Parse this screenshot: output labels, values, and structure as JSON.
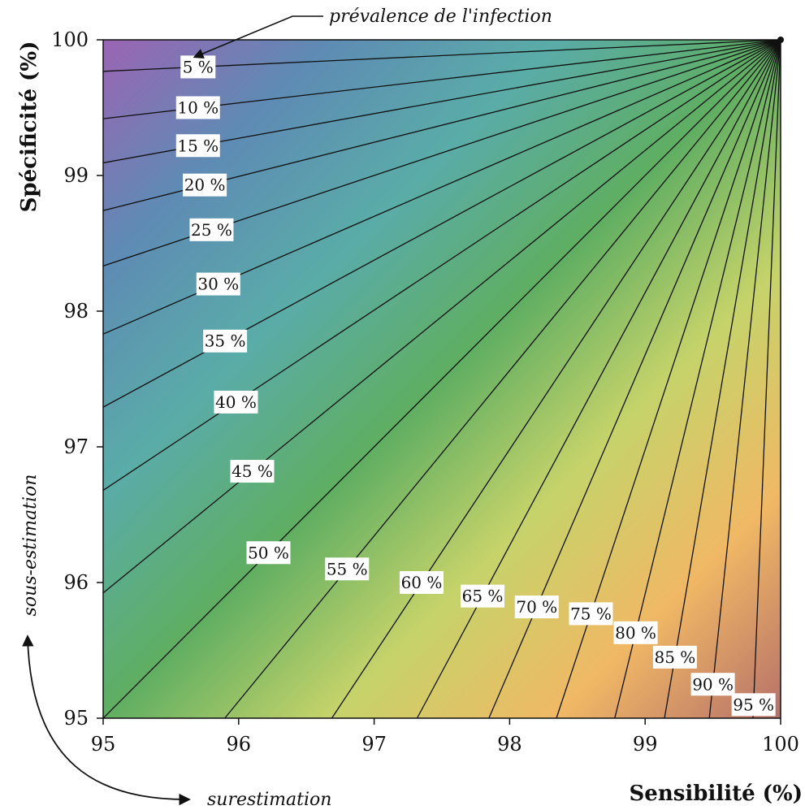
{
  "chart_data": {
    "type": "contour",
    "xlabel": "Sensibilité (%)",
    "ylabel": "Spécificité (%)",
    "xlim": [
      95,
      100
    ],
    "ylim": [
      95,
      100
    ],
    "x_ticks": [
      "95",
      "96",
      "97",
      "98",
      "99",
      "100"
    ],
    "y_ticks": [
      "95",
      "96",
      "97",
      "98",
      "99",
      "100"
    ],
    "grid": false,
    "focus_point": [
      100,
      100
    ],
    "contours": [
      {
        "level": 5,
        "label": "5 %",
        "label_pos": [
          95.7,
          99.8
        ]
      },
      {
        "level": 10,
        "label": "10 %",
        "label_pos": [
          95.7,
          99.5
        ]
      },
      {
        "level": 15,
        "label": "15 %",
        "label_pos": [
          95.7,
          99.22
        ]
      },
      {
        "level": 20,
        "label": "20 %",
        "label_pos": [
          95.75,
          98.93
        ]
      },
      {
        "level": 25,
        "label": "25 %",
        "label_pos": [
          95.8,
          98.6
        ]
      },
      {
        "level": 30,
        "label": "30 %",
        "label_pos": [
          95.85,
          98.2
        ]
      },
      {
        "level": 35,
        "label": "35 %",
        "label_pos": [
          95.9,
          97.78
        ]
      },
      {
        "level": 40,
        "label": "40 %",
        "label_pos": [
          95.98,
          97.33
        ]
      },
      {
        "level": 45,
        "label": "45 %",
        "label_pos": [
          96.1,
          96.82
        ]
      },
      {
        "level": 50,
        "label": "50 %",
        "label_pos": [
          96.22,
          96.22
        ]
      },
      {
        "level": 55,
        "label": "55 %",
        "label_pos": [
          96.8,
          96.1
        ]
      },
      {
        "level": 60,
        "label": "60 %",
        "label_pos": [
          97.35,
          96.0
        ]
      },
      {
        "level": 65,
        "label": "65 %",
        "label_pos": [
          97.8,
          95.9
        ]
      },
      {
        "level": 70,
        "label": "70 %",
        "label_pos": [
          98.2,
          95.82
        ]
      },
      {
        "level": 75,
        "label": "75 %",
        "label_pos": [
          98.6,
          95.77
        ]
      },
      {
        "level": 80,
        "label": "80 %",
        "label_pos": [
          98.93,
          95.63
        ]
      },
      {
        "level": 85,
        "label": "85 %",
        "label_pos": [
          99.22,
          95.45
        ]
      },
      {
        "level": 90,
        "label": "90 %",
        "label_pos": [
          99.5,
          95.25
        ]
      },
      {
        "level": 95,
        "label": "95 %",
        "label_pos": [
          99.8,
          95.1
        ]
      }
    ],
    "colormap": [
      "#9c64b4",
      "#5e8bb4",
      "#5aaca8",
      "#5fae62",
      "#c6d36a",
      "#f0b865",
      "#b6706a"
    ],
    "annotations": {
      "top": "prévalence de l'infection",
      "left": "sous-estimation",
      "bottom": "surestimation"
    }
  }
}
